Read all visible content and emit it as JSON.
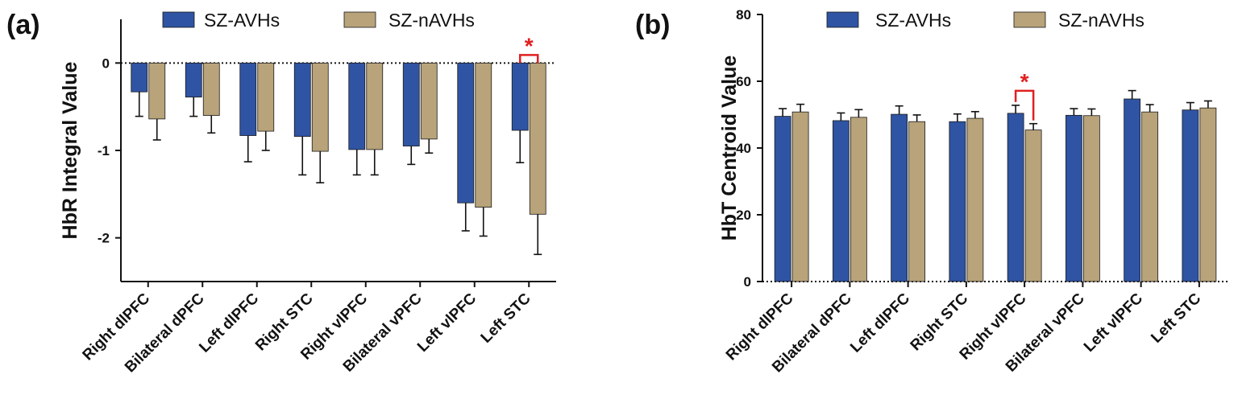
{
  "colors": {
    "series_a": "#2f54a3",
    "series_b": "#b8a37a",
    "significance": "#e02020",
    "axis": "#111111"
  },
  "chart_data": [
    {
      "type": "bar",
      "panel_label": "(a)",
      "ylabel": "HbR Integral Value",
      "ylim": [
        -2.5,
        0.5
      ],
      "yticks": [
        0,
        -1,
        -2
      ],
      "ytick_labels": [
        "0",
        "-1",
        "-2"
      ],
      "legend_placement": "top-center",
      "categories": [
        "Right dlPFC",
        "Bilateral dPFC",
        "Left dlPFC",
        "Right STC",
        "Right vlPFC",
        "Bilateral vPFC",
        "Left vlPFC",
        "Left STC"
      ],
      "series": [
        {
          "name": "SZ-AVHs",
          "values": [
            -0.33,
            -0.39,
            -0.83,
            -0.84,
            -0.99,
            -0.95,
            -1.6,
            -0.77
          ],
          "errors": [
            0.28,
            0.22,
            0.3,
            0.44,
            0.29,
            0.21,
            0.32,
            0.37
          ]
        },
        {
          "name": "SZ-nAVHs",
          "values": [
            -0.64,
            -0.6,
            -0.78,
            -1.01,
            -0.99,
            -0.87,
            -1.65,
            -1.73
          ],
          "errors": [
            0.24,
            0.2,
            0.22,
            0.36,
            0.29,
            0.16,
            0.33,
            0.46
          ]
        }
      ],
      "significance": [
        {
          "category": "Left STC",
          "label": "*"
        }
      ]
    },
    {
      "type": "bar",
      "panel_label": "(b)",
      "ylabel": "HbT Centroid Value",
      "ylim": [
        0,
        80
      ],
      "yticks": [
        0,
        20,
        40,
        60,
        80
      ],
      "ytick_labels": [
        "0",
        "20",
        "40",
        "60",
        "80"
      ],
      "legend_placement": "top-center",
      "categories": [
        "Right dlPFC",
        "Bilateral dPFC",
        "Left dlPFC",
        "Right STC",
        "Right vlPFC",
        "Bilateral vPFC",
        "Left vlPFC",
        "Left STC"
      ],
      "series": [
        {
          "name": "SZ-AVHs",
          "values": [
            49.5,
            48.2,
            50.1,
            47.9,
            50.4,
            49.8,
            54.7,
            51.4
          ],
          "errors": [
            2.3,
            2.3,
            2.5,
            2.3,
            2.4,
            2.0,
            2.5,
            2.2
          ]
        },
        {
          "name": "SZ-nAVHs",
          "values": [
            50.8,
            49.2,
            47.9,
            48.9,
            45.4,
            49.7,
            50.8,
            52.0
          ],
          "errors": [
            2.3,
            2.3,
            2.0,
            2.0,
            1.9,
            2.0,
            2.2,
            2.1
          ]
        }
      ],
      "significance": [
        {
          "category": "Right vlPFC",
          "label": "*"
        }
      ]
    }
  ]
}
